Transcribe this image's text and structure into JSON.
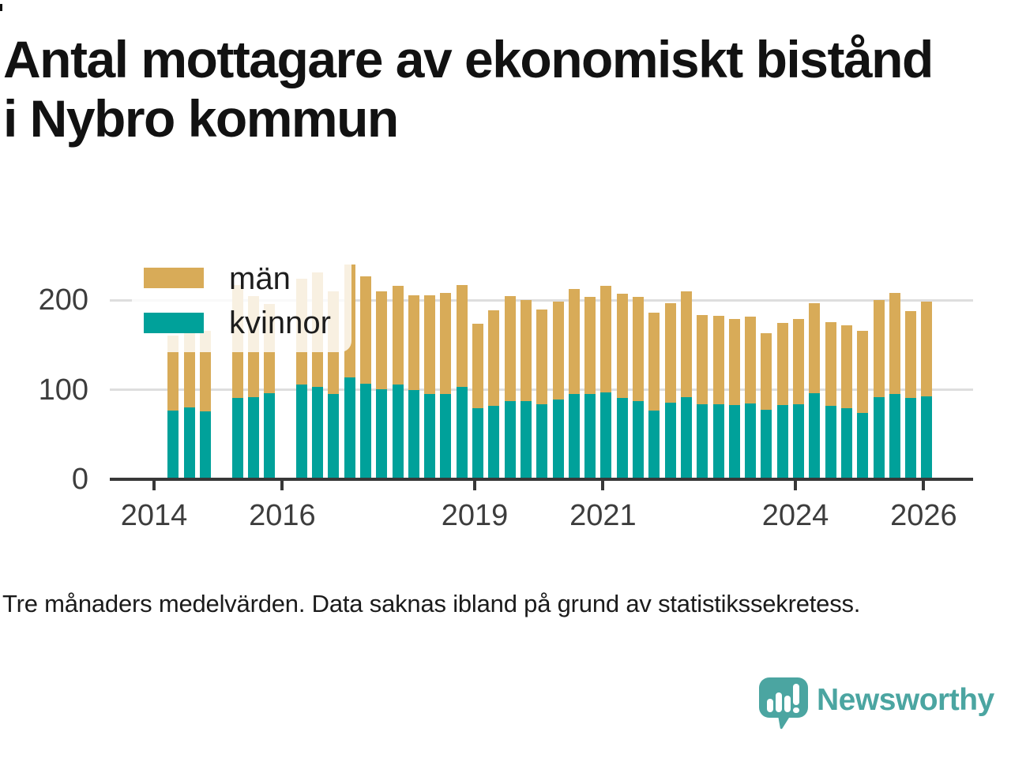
{
  "title": {
    "line1": "Antal mottagare av ekonomiskt bistånd",
    "line2": "i Nybro kommun"
  },
  "legend": {
    "men_label": "män",
    "women_label": "kvinnor"
  },
  "footer": {
    "note": "Tre månaders medelvärden. Data saknas ibland på grund av statistikssekretess."
  },
  "branding": {
    "name": "Newsworthy",
    "logo_icon": "speech-bubble-bar-chart-icon"
  },
  "colors": {
    "men": "#D8AB58",
    "women": "#00A19A",
    "grid": "#dedede",
    "axis": "#383838",
    "tick_text": "#3d3d3d",
    "logo_teal": "#4BA5A1"
  },
  "chart_data": {
    "type": "bar",
    "stacked": true,
    "title": "Antal mottagare av ekonomiskt bistånd i Nybro kommun",
    "xlabel": "",
    "ylabel": "",
    "ylim": [
      0,
      250
    ],
    "grid": "horizontal",
    "legend_position": "top-left-overlay",
    "y_ticks": [
      0,
      100,
      200
    ],
    "x_ticks": [
      2014,
      2016,
      2019,
      2021,
      2024,
      2026
    ],
    "series_names": [
      "kvinnor",
      "män"
    ],
    "missing_data_note": "null = data saknas (statistikssekretess)",
    "quarters": [
      {
        "q": "2014-Q1",
        "women": null,
        "men": null
      },
      {
        "q": "2014-Q2",
        "women": 77,
        "men": 84
      },
      {
        "q": "2014-Q3",
        "women": 80,
        "men": 83
      },
      {
        "q": "2014-Q4",
        "women": 76,
        "men": 90
      },
      {
        "q": "2015-Q1",
        "women": null,
        "men": null
      },
      {
        "q": "2015-Q2",
        "women": 91,
        "men": 126
      },
      {
        "q": "2015-Q3",
        "women": 92,
        "men": 113
      },
      {
        "q": "2015-Q4",
        "women": 96,
        "men": 100
      },
      {
        "q": "2016-Q1",
        "women": null,
        "men": null
      },
      {
        "q": "2016-Q2",
        "women": 106,
        "men": 118
      },
      {
        "q": "2016-Q3",
        "women": 103,
        "men": 128
      },
      {
        "q": "2016-Q4",
        "women": 95,
        "men": 115
      },
      {
        "q": "2017-Q1",
        "women": 114,
        "men": 126
      },
      {
        "q": "2017-Q2",
        "women": 107,
        "men": 120
      },
      {
        "q": "2017-Q3",
        "women": 101,
        "men": 109
      },
      {
        "q": "2017-Q4",
        "women": 106,
        "men": 110
      },
      {
        "q": "2018-Q1",
        "women": 100,
        "men": 106
      },
      {
        "q": "2018-Q2",
        "women": 95,
        "men": 111
      },
      {
        "q": "2018-Q3",
        "women": 95,
        "men": 113
      },
      {
        "q": "2018-Q4",
        "women": 103,
        "men": 114
      },
      {
        "q": "2019-Q1",
        "women": 79,
        "men": 95
      },
      {
        "q": "2019-Q2",
        "women": 82,
        "men": 107
      },
      {
        "q": "2019-Q3",
        "women": 87,
        "men": 118
      },
      {
        "q": "2019-Q4",
        "women": 87,
        "men": 113
      },
      {
        "q": "2020-Q1",
        "women": 84,
        "men": 106
      },
      {
        "q": "2020-Q2",
        "women": 89,
        "men": 110
      },
      {
        "q": "2020-Q3",
        "women": 95,
        "men": 118
      },
      {
        "q": "2020-Q4",
        "women": 95,
        "men": 109
      },
      {
        "q": "2021-Q1",
        "women": 97,
        "men": 119
      },
      {
        "q": "2021-Q2",
        "women": 91,
        "men": 116
      },
      {
        "q": "2021-Q3",
        "women": 87,
        "men": 117
      },
      {
        "q": "2021-Q4",
        "women": 77,
        "men": 109
      },
      {
        "q": "2022-Q1",
        "women": 86,
        "men": 111
      },
      {
        "q": "2022-Q2",
        "women": 92,
        "men": 118
      },
      {
        "q": "2022-Q3",
        "women": 84,
        "men": 100
      },
      {
        "q": "2022-Q4",
        "women": 84,
        "men": 99
      },
      {
        "q": "2023-Q1",
        "women": 83,
        "men": 96
      },
      {
        "q": "2023-Q2",
        "women": 85,
        "men": 97
      },
      {
        "q": "2023-Q3",
        "women": 78,
        "men": 85
      },
      {
        "q": "2023-Q4",
        "women": 83,
        "men": 92
      },
      {
        "q": "2024-Q1",
        "women": 84,
        "men": 95
      },
      {
        "q": "2024-Q2",
        "women": 96,
        "men": 101
      },
      {
        "q": "2024-Q3",
        "women": 82,
        "men": 94
      },
      {
        "q": "2024-Q4",
        "women": 79,
        "men": 93
      },
      {
        "q": "2025-Q1",
        "women": 74,
        "men": 92
      },
      {
        "q": "2025-Q2",
        "women": 92,
        "men": 108
      },
      {
        "q": "2025-Q3",
        "women": 95,
        "men": 113
      },
      {
        "q": "2025-Q4",
        "women": 91,
        "men": 97
      },
      {
        "q": "2026-Q1",
        "women": 93,
        "men": 106
      }
    ]
  }
}
